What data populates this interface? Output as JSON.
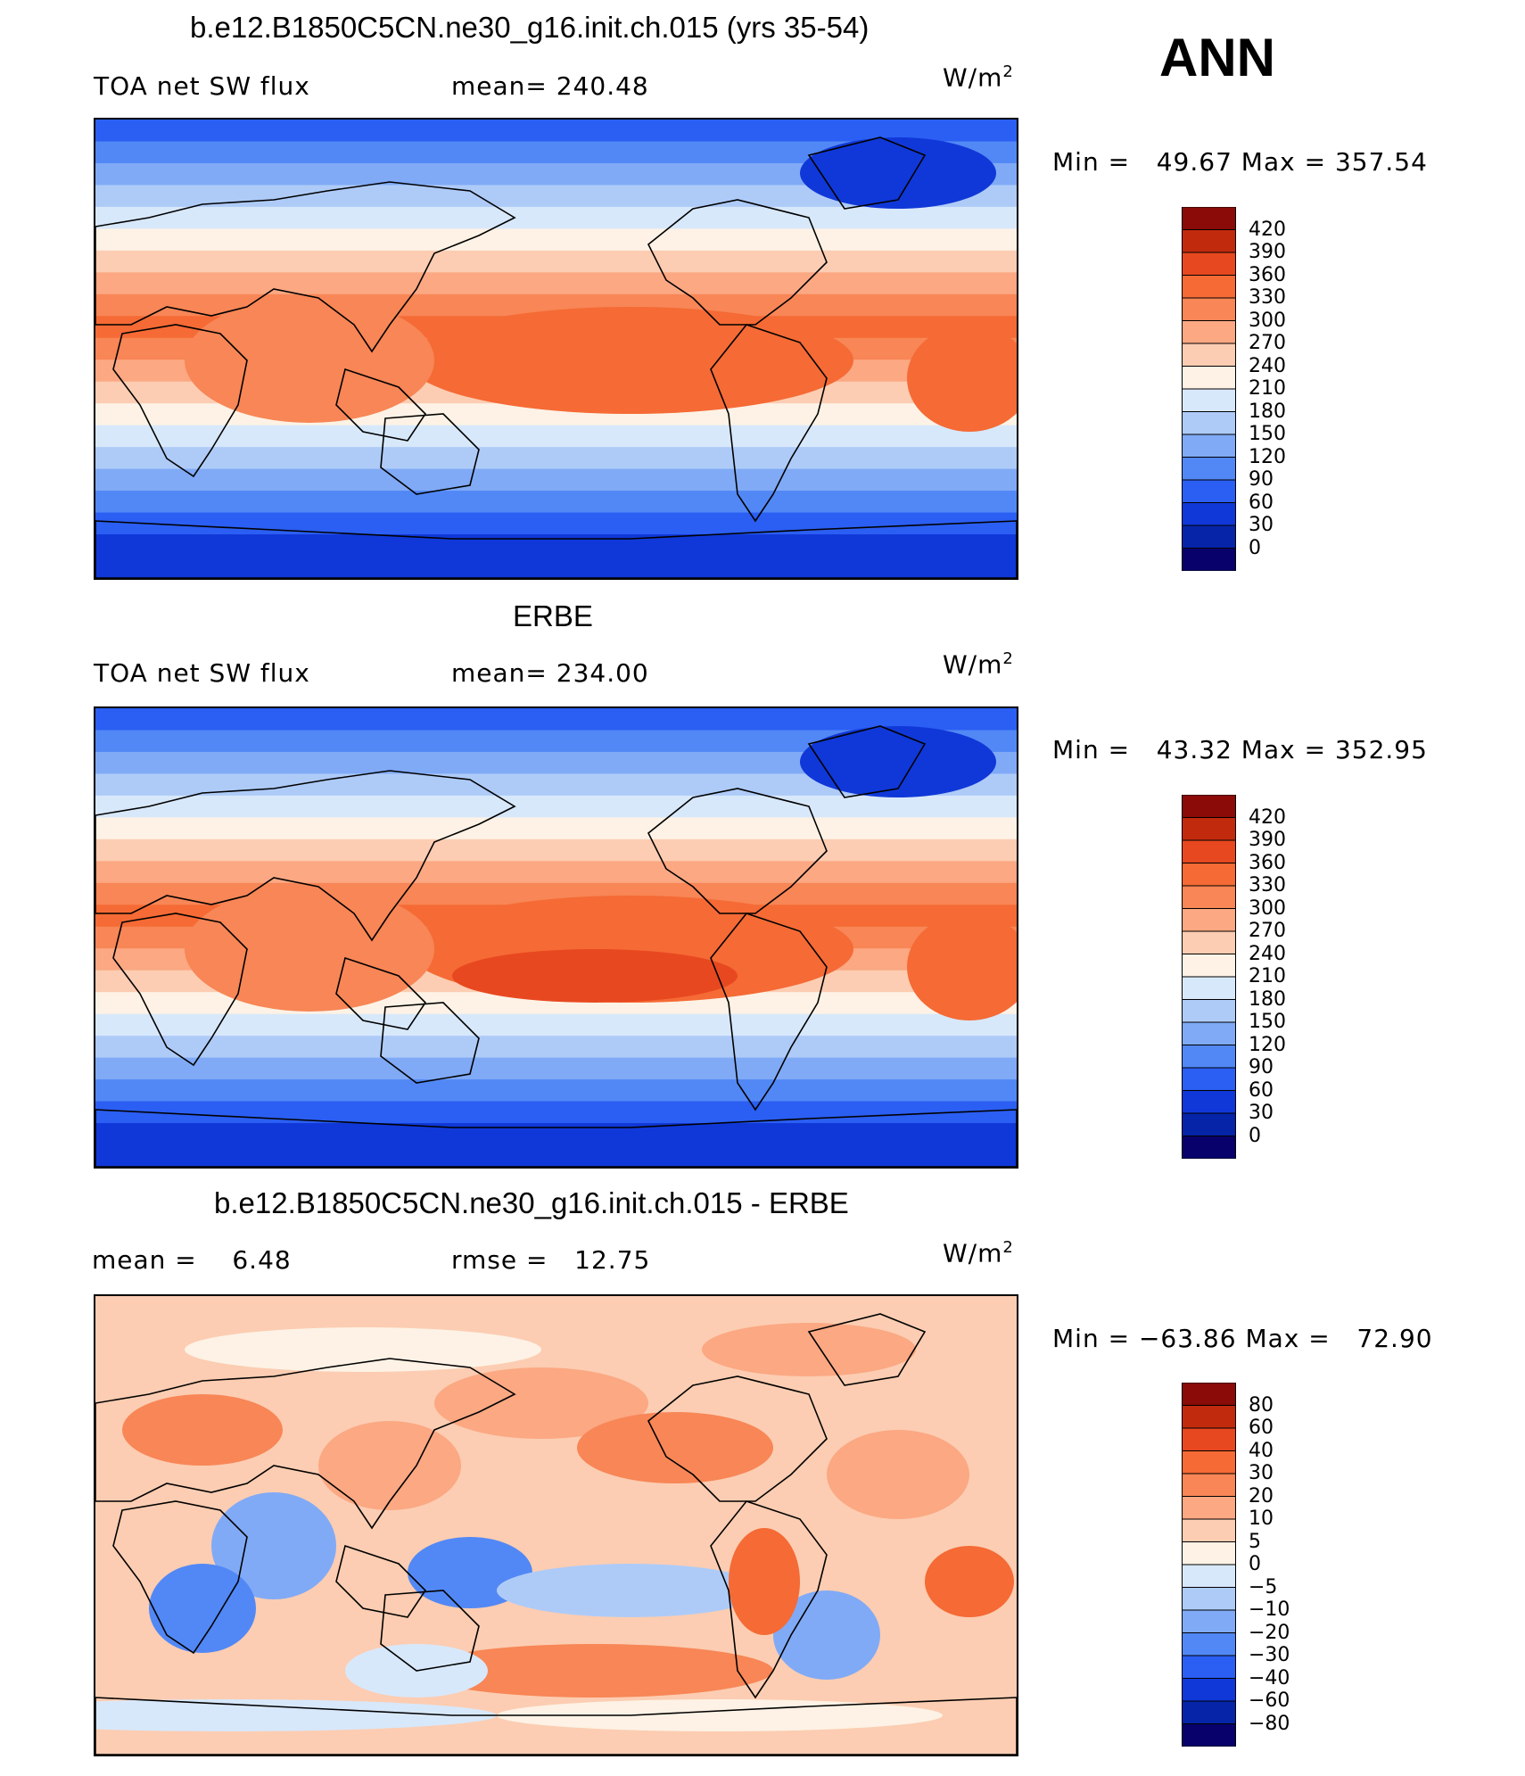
{
  "page": {
    "season_label": "ANN"
  },
  "colors": {
    "abs_scale": [
      "#08006b",
      "#0624a8",
      "#1038d8",
      "#2b5ef2",
      "#5288f5",
      "#80aaf6",
      "#aecbf8",
      "#d8e8fb",
      "#fdf2e5",
      "#fccdb2",
      "#fba883",
      "#f88656",
      "#f56a35",
      "#e84820",
      "#c22a0e",
      "#8a0b07"
    ],
    "diff_scale": [
      "#08006b",
      "#0624a8",
      "#1038d8",
      "#2b5ef2",
      "#5288f5",
      "#80aaf6",
      "#aecbf8",
      "#d8e8fb",
      "#fdf2e5",
      "#fccdb2",
      "#fba883",
      "#f88656",
      "#f56a35",
      "#e84820",
      "#c22a0e",
      "#8a0b07"
    ]
  },
  "panels": [
    {
      "title": "b.e12.B1850C5CN.ne30_g16.init.ch.015 (yrs 35-54)",
      "left_label": "TOA net SW flux",
      "stat_label": "mean= 240.48",
      "units": "W/m",
      "units_sup": "2",
      "minmax": "Min =   49.67 Max = 357.54",
      "colorbar_labels": [
        "420",
        "390",
        "360",
        "330",
        "300",
        "270",
        "240",
        "210",
        "180",
        "150",
        "120",
        "90",
        "60",
        "30",
        "0"
      ]
    },
    {
      "title": "ERBE",
      "left_label": "TOA net SW flux",
      "stat_label": "mean= 234.00",
      "units": "W/m",
      "units_sup": "2",
      "minmax": "Min =   43.32 Max = 352.95",
      "colorbar_labels": [
        "420",
        "390",
        "360",
        "330",
        "300",
        "270",
        "240",
        "210",
        "180",
        "150",
        "120",
        "90",
        "60",
        "30",
        "0"
      ]
    },
    {
      "title": "b.e12.B1850C5CN.ne30_g16.init.ch.015 - ERBE",
      "left_label": "mean =    6.48",
      "stat_label": "rmse =   12.75",
      "units": "W/m",
      "units_sup": "2",
      "minmax": "Min = −63.86 Max =   72.90",
      "colorbar_labels": [
        "80",
        "60",
        "40",
        "30",
        "20",
        "10",
        "5",
        "0",
        "−5",
        "−10",
        "−20",
        "−30",
        "−40",
        "−60",
        "−80"
      ]
    }
  ],
  "chart_data": [
    {
      "type": "heatmap",
      "title": "b.e12.B1850C5CN.ne30_g16.init.ch.015 (yrs 35-54)",
      "variable": "TOA net SW flux",
      "units": "W/m2",
      "mean": 240.48,
      "min": 49.67,
      "max": 357.54,
      "levels": [
        0,
        30,
        60,
        90,
        120,
        150,
        180,
        210,
        240,
        270,
        300,
        330,
        360,
        390,
        420
      ]
    },
    {
      "type": "heatmap",
      "title": "ERBE",
      "variable": "TOA net SW flux",
      "units": "W/m2",
      "mean": 234.0,
      "min": 43.32,
      "max": 352.95,
      "levels": [
        0,
        30,
        60,
        90,
        120,
        150,
        180,
        210,
        240,
        270,
        300,
        330,
        360,
        390,
        420
      ]
    },
    {
      "type": "heatmap",
      "title": "b.e12.B1850C5CN.ne30_g16.init.ch.015 - ERBE",
      "units": "W/m2",
      "mean": 6.48,
      "rmse": 12.75,
      "min": -63.86,
      "max": 72.9,
      "levels": [
        -80,
        -60,
        -40,
        -30,
        -20,
        -10,
        -5,
        0,
        5,
        10,
        20,
        30,
        40,
        60,
        80
      ]
    }
  ]
}
